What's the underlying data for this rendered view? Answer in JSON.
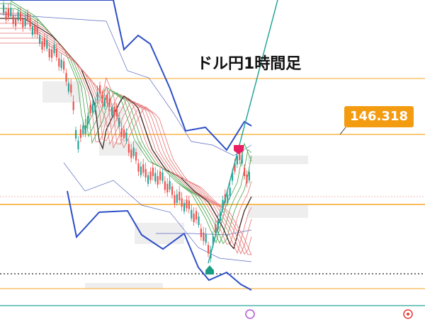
{
  "chart": {
    "title": "ドル円1時間足",
    "price_label": "146.318"
  }
}
